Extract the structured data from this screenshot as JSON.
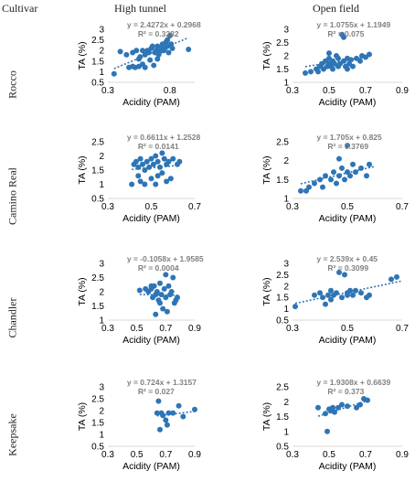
{
  "headers": {
    "cultivar": "Cultivar",
    "high_tunnel": "High tunnel",
    "open_field": "Open field"
  },
  "cultivars": [
    "Rocco",
    "Camino Real",
    "Chandler",
    "Keepsake"
  ],
  "colors": {
    "marker": "#2e75b6",
    "trend": "#2e75b6",
    "equation": "#808080",
    "axis": "#d9d9d9"
  },
  "chart_data": [
    {
      "type": "scatter",
      "cultivar": "Rocco",
      "field": "High tunnel",
      "xlabel": "Acidity (PAM)",
      "ylabel": "TA (%)",
      "xlim": [
        0.3,
        1.0
      ],
      "xticks": [
        0.3,
        0.8
      ],
      "ylim": [
        0.5,
        3.0
      ],
      "yticks": [
        0.5,
        1,
        1.5,
        2,
        2.5,
        3
      ],
      "ytick_labels": [
        "0.5",
        "1",
        "1.5",
        "2",
        "2.5",
        "3"
      ],
      "equation": "y = 2.4272x + 0.2968",
      "r2": "R² = 0.3282",
      "trend": {
        "slope": 2.4272,
        "intercept": 0.2968,
        "x": [
          0.35,
          0.95
        ]
      },
      "points": [
        [
          0.35,
          0.9
        ],
        [
          0.47,
          1.2
        ],
        [
          0.5,
          1.25
        ],
        [
          0.52,
          1.2
        ],
        [
          0.55,
          1.25
        ],
        [
          0.45,
          1.8
        ],
        [
          0.5,
          1.9
        ],
        [
          0.53,
          2.0
        ],
        [
          0.55,
          1.6
        ],
        [
          0.56,
          1.7
        ],
        [
          0.58,
          2.0
        ],
        [
          0.6,
          1.8
        ],
        [
          0.62,
          2.0
        ],
        [
          0.63,
          1.9
        ],
        [
          0.65,
          2.1
        ],
        [
          0.66,
          2.2
        ],
        [
          0.67,
          1.3
        ],
        [
          0.68,
          1.9
        ],
        [
          0.69,
          2.0
        ],
        [
          0.7,
          2.2
        ],
        [
          0.71,
          1.8
        ],
        [
          0.72,
          1.95
        ],
        [
          0.73,
          2.1
        ],
        [
          0.74,
          2.3
        ],
        [
          0.75,
          2.0
        ],
        [
          0.76,
          2.1
        ],
        [
          0.77,
          2.4
        ],
        [
          0.78,
          2.5
        ],
        [
          0.78,
          2.2
        ],
        [
          0.79,
          1.9
        ],
        [
          0.8,
          2.7
        ],
        [
          0.81,
          2.3
        ],
        [
          0.82,
          2.1
        ],
        [
          0.6,
          1.2
        ],
        [
          0.95,
          2.05
        ],
        [
          0.58,
          1.35
        ],
        [
          0.64,
          1.55
        ],
        [
          0.7,
          1.6
        ],
        [
          0.4,
          1.95
        ]
      ]
    },
    {
      "type": "scatter",
      "cultivar": "Rocco",
      "field": "Open field",
      "xlabel": "Acidity (PAM)",
      "ylabel": "TA (%)",
      "xlim": [
        0.3,
        0.9
      ],
      "xticks": [
        0.3,
        0.5,
        0.7,
        0.9
      ],
      "ylim": [
        1,
        3
      ],
      "yticks": [
        1,
        1.5,
        2,
        2.5,
        3
      ],
      "ytick_labels": [
        "1",
        "1.5",
        "2",
        "2.5",
        "3"
      ],
      "equation": "y = 1.0755x + 1.1949",
      "r2": "R² = 0.075",
      "trend": {
        "slope": 1.0755,
        "intercept": 1.1949,
        "x": [
          0.37,
          0.72
        ]
      },
      "points": [
        [
          0.37,
          1.35
        ],
        [
          0.4,
          1.4
        ],
        [
          0.43,
          1.5
        ],
        [
          0.45,
          1.6
        ],
        [
          0.46,
          1.7
        ],
        [
          0.47,
          1.5
        ],
        [
          0.48,
          1.8
        ],
        [
          0.49,
          1.6
        ],
        [
          0.5,
          1.9
        ],
        [
          0.5,
          1.7
        ],
        [
          0.51,
          1.6
        ],
        [
          0.52,
          1.8
        ],
        [
          0.53,
          1.7
        ],
        [
          0.54,
          2.0
        ],
        [
          0.55,
          1.6
        ],
        [
          0.55,
          1.9
        ],
        [
          0.56,
          1.7
        ],
        [
          0.57,
          2.8
        ],
        [
          0.58,
          2.7
        ],
        [
          0.58,
          1.8
        ],
        [
          0.59,
          1.6
        ],
        [
          0.6,
          1.9
        ],
        [
          0.61,
          1.7
        ],
        [
          0.62,
          1.85
        ],
        [
          0.63,
          1.6
        ],
        [
          0.65,
          1.9
        ],
        [
          0.67,
          1.8
        ],
        [
          0.68,
          2.0
        ],
        [
          0.7,
          1.95
        ],
        [
          0.72,
          2.05
        ],
        [
          0.44,
          1.4
        ],
        [
          0.52,
          1.5
        ],
        [
          0.6,
          1.5
        ],
        [
          0.5,
          2.1
        ]
      ]
    },
    {
      "type": "scatter",
      "cultivar": "Camino Real",
      "field": "High tunnel",
      "xlabel": "Acidity (PAM)",
      "ylabel": "TA (%)",
      "xlim": [
        0.3,
        0.7
      ],
      "xticks": [
        0.3,
        0.5,
        0.7
      ],
      "ylim": [
        0.5,
        2.5
      ],
      "yticks": [
        0.5,
        1,
        1.5,
        2,
        2.5
      ],
      "ytick_labels": [
        "0.5",
        "1",
        "1.5",
        "2",
        "2.5"
      ],
      "equation": "y = 0.6611x + 1.2528",
      "r2": "R² = 0.0141",
      "trend": {
        "slope": 0.6611,
        "intercept": 1.2528,
        "x": [
          0.41,
          0.63
        ]
      },
      "points": [
        [
          0.41,
          1.0
        ],
        [
          0.42,
          1.7
        ],
        [
          0.43,
          1.8
        ],
        [
          0.44,
          1.6
        ],
        [
          0.45,
          1.9
        ],
        [
          0.45,
          1.1
        ],
        [
          0.46,
          1.7
        ],
        [
          0.47,
          1.5
        ],
        [
          0.47,
          1.0
        ],
        [
          0.48,
          1.8
        ],
        [
          0.49,
          1.6
        ],
        [
          0.5,
          1.9
        ],
        [
          0.5,
          1.2
        ],
        [
          0.51,
          1.7
        ],
        [
          0.52,
          2.0
        ],
        [
          0.52,
          1.0
        ],
        [
          0.53,
          1.8
        ],
        [
          0.54,
          1.6
        ],
        [
          0.55,
          2.1
        ],
        [
          0.55,
          1.4
        ],
        [
          0.56,
          1.9
        ],
        [
          0.57,
          1.7
        ],
        [
          0.57,
          1.1
        ],
        [
          0.58,
          1.8
        ],
        [
          0.6,
          1.9
        ],
        [
          0.62,
          1.7
        ],
        [
          0.63,
          1.8
        ],
        [
          0.44,
          1.3
        ],
        [
          0.53,
          1.3
        ],
        [
          0.59,
          1.2
        ]
      ]
    },
    {
      "type": "scatter",
      "cultivar": "Camino Real",
      "field": "Open field",
      "xlabel": "Acidity (PAM)",
      "ylabel": "TA (%)",
      "xlim": [
        0.3,
        0.7
      ],
      "xticks": [
        0.3,
        0.5,
        0.7
      ],
      "ylim": [
        1,
        2.5
      ],
      "yticks": [
        1,
        1.5,
        2,
        2.5
      ],
      "ytick_labels": [
        "1",
        "1.5",
        "2",
        "2.5"
      ],
      "equation": "y = 1.705x + 0.825",
      "r2": "R² = 0.3769",
      "trend": {
        "slope": 1.705,
        "intercept": 0.825,
        "x": [
          0.33,
          0.6
        ]
      },
      "points": [
        [
          0.33,
          1.2
        ],
        [
          0.35,
          1.2
        ],
        [
          0.36,
          1.3
        ],
        [
          0.38,
          1.4
        ],
        [
          0.4,
          1.5
        ],
        [
          0.41,
          1.3
        ],
        [
          0.42,
          1.6
        ],
        [
          0.44,
          1.5
        ],
        [
          0.45,
          1.7
        ],
        [
          0.46,
          1.4
        ],
        [
          0.47,
          1.6
        ],
        [
          0.48,
          1.8
        ],
        [
          0.49,
          1.5
        ],
        [
          0.5,
          1.7
        ],
        [
          0.5,
          2.4
        ],
        [
          0.51,
          1.6
        ],
        [
          0.52,
          1.9
        ],
        [
          0.53,
          1.7
        ],
        [
          0.55,
          1.8
        ],
        [
          0.57,
          1.6
        ],
        [
          0.58,
          1.9
        ],
        [
          0.47,
          2.05
        ]
      ]
    },
    {
      "type": "scatter",
      "cultivar": "Chandler",
      "field": "High tunnel",
      "xlabel": "Acidity (PAM)",
      "ylabel": "TA (%)",
      "xlim": [
        0.3,
        0.9
      ],
      "xticks": [
        0.3,
        0.5,
        0.7,
        0.9
      ],
      "ylim": [
        1,
        3
      ],
      "yticks": [
        1,
        1.5,
        2,
        2.5,
        3
      ],
      "ytick_labels": [
        "1",
        "1.5",
        "2",
        "2.5",
        "3"
      ],
      "equation": "y = -0.1058x + 1.9585",
      "r2": "R² = 0.0004",
      "trend": {
        "slope": -0.1058,
        "intercept": 1.9585,
        "x": [
          0.52,
          0.78
        ]
      },
      "points": [
        [
          0.52,
          2.05
        ],
        [
          0.56,
          2.1
        ],
        [
          0.58,
          2.0
        ],
        [
          0.6,
          2.1
        ],
        [
          0.61,
          1.8
        ],
        [
          0.62,
          2.2
        ],
        [
          0.63,
          1.9
        ],
        [
          0.63,
          1.2
        ],
        [
          0.64,
          2.0
        ],
        [
          0.65,
          1.7
        ],
        [
          0.66,
          2.3
        ],
        [
          0.67,
          1.9
        ],
        [
          0.68,
          1.4
        ],
        [
          0.69,
          2.1
        ],
        [
          0.7,
          1.8
        ],
        [
          0.7,
          2.6
        ],
        [
          0.71,
          1.3
        ],
        [
          0.72,
          2.2
        ],
        [
          0.73,
          1.9
        ],
        [
          0.74,
          2.0
        ],
        [
          0.75,
          2.5
        ],
        [
          0.76,
          1.6
        ],
        [
          0.77,
          1.7
        ],
        [
          0.78,
          1.8
        ],
        [
          0.66,
          1.6
        ],
        [
          0.6,
          2.2
        ]
      ]
    },
    {
      "type": "scatter",
      "cultivar": "Chandler",
      "field": "Open field",
      "xlabel": "Acidity (PAM)",
      "ylabel": "TA (%)",
      "xlim": [
        0.3,
        0.7
      ],
      "xticks": [
        0.3,
        0.5,
        0.7
      ],
      "ylim": [
        0.5,
        3
      ],
      "yticks": [
        0.5,
        1,
        1.5,
        2,
        2.5,
        3
      ],
      "ytick_labels": [
        "0.5",
        "1",
        "1.5",
        "2",
        "2.5",
        "3"
      ],
      "equation": "y = 2.539x + 0.45",
      "r2": "R² = 0.3099",
      "trend": {
        "slope": 2.539,
        "intercept": 0.45,
        "x": [
          0.31,
          0.7
        ]
      },
      "points": [
        [
          0.31,
          1.1
        ],
        [
          0.38,
          1.6
        ],
        [
          0.4,
          1.7
        ],
        [
          0.41,
          1.5
        ],
        [
          0.42,
          1.2
        ],
        [
          0.43,
          1.6
        ],
        [
          0.44,
          1.4
        ],
        [
          0.45,
          1.6
        ],
        [
          0.46,
          1.7
        ],
        [
          0.47,
          2.6
        ],
        [
          0.48,
          1.5
        ],
        [
          0.49,
          2.5
        ],
        [
          0.5,
          1.7
        ],
        [
          0.51,
          1.8
        ],
        [
          0.52,
          1.6
        ],
        [
          0.53,
          1.8
        ],
        [
          0.55,
          1.7
        ],
        [
          0.57,
          1.5
        ],
        [
          0.58,
          1.6
        ],
        [
          0.66,
          2.3
        ],
        [
          0.68,
          2.4
        ],
        [
          0.5,
          1.6
        ],
        [
          0.44,
          1.8
        ]
      ]
    },
    {
      "type": "scatter",
      "cultivar": "Keepsake",
      "field": "High tunnel",
      "xlabel": "Acidity (PAM)",
      "ylabel": "TA (%)",
      "xlim": [
        0.3,
        0.9
      ],
      "xticks": [
        0.3,
        0.5,
        0.7,
        0.9
      ],
      "ylim": [
        0.5,
        3
      ],
      "yticks": [
        0.5,
        1,
        1.5,
        2,
        2.5,
        3
      ],
      "ytick_labels": [
        "0.5",
        "1",
        "1.5",
        "2",
        "2.5",
        "3"
      ],
      "equation": "y = 0.724x + 1.3157",
      "r2": "R² = 0.027",
      "trend": {
        "slope": 0.724,
        "intercept": 1.3157,
        "x": [
          0.64,
          0.9
        ]
      },
      "points": [
        [
          0.64,
          1.9
        ],
        [
          0.65,
          2.4
        ],
        [
          0.66,
          1.2
        ],
        [
          0.67,
          1.9
        ],
        [
          0.68,
          1.8
        ],
        [
          0.7,
          1.6
        ],
        [
          0.71,
          1.4
        ],
        [
          0.72,
          1.9
        ],
        [
          0.75,
          1.9
        ],
        [
          0.79,
          2.2
        ],
        [
          0.82,
          1.75
        ],
        [
          0.9,
          2.05
        ]
      ]
    },
    {
      "type": "scatter",
      "cultivar": "Keepsake",
      "field": "Open field",
      "xlabel": "Acidity (PAM)",
      "ylabel": "TA (%)",
      "xlim": [
        0.3,
        0.9
      ],
      "xticks": [
        0.3,
        0.5,
        0.7,
        0.9
      ],
      "ylim": [
        0.5,
        2.5
      ],
      "yticks": [
        0.5,
        1,
        1.5,
        2,
        2.5
      ],
      "ytick_labels": [
        "0.5",
        "1",
        "1.5",
        "2",
        "2.5"
      ],
      "equation": "y = 1.9308x + 0.6639",
      "r2": "R² = 0.373",
      "trend": {
        "slope": 1.9308,
        "intercept": 0.6639,
        "x": [
          0.44,
          0.72
        ]
      },
      "points": [
        [
          0.44,
          1.8
        ],
        [
          0.48,
          1.6
        ],
        [
          0.49,
          1.0
        ],
        [
          0.5,
          1.75
        ],
        [
          0.51,
          1.7
        ],
        [
          0.52,
          1.8
        ],
        [
          0.53,
          1.65
        ],
        [
          0.55,
          1.8
        ],
        [
          0.57,
          1.9
        ],
        [
          0.6,
          1.85
        ],
        [
          0.65,
          1.8
        ],
        [
          0.67,
          1.9
        ],
        [
          0.69,
          2.1
        ],
        [
          0.71,
          2.05
        ]
      ]
    }
  ]
}
